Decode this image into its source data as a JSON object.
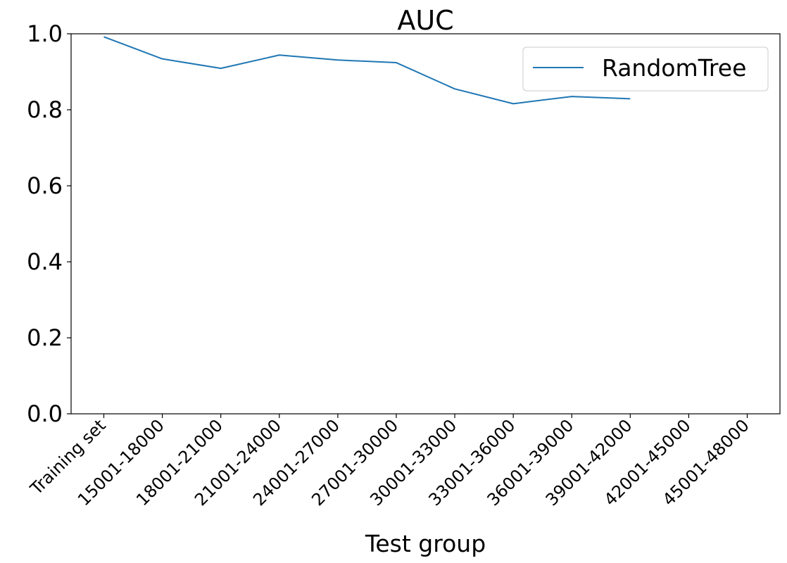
{
  "chart_data": {
    "type": "line",
    "title": "AUC",
    "xlabel": "Test group",
    "ylabel": "",
    "categories": [
      "Training set",
      "15001-18000",
      "18001-21000",
      "21001-24000",
      "24001-27000",
      "27001-30000",
      "30001-33000",
      "33001-36000",
      "36001-39000",
      "39001-42000",
      "42001-45000",
      "45001-48000"
    ],
    "series": [
      {
        "name": "RandomTree",
        "color": "#1f77b4",
        "values": [
          0.992,
          0.934,
          0.909,
          0.944,
          0.931,
          0.924,
          0.855,
          0.816,
          0.835,
          0.829,
          null,
          null
        ]
      }
    ],
    "ylim": [
      0.0,
      1.0
    ],
    "yticks": [
      0.0,
      0.2,
      0.4,
      0.6,
      0.8,
      1.0
    ],
    "ytick_labels": [
      "0.0",
      "0.2",
      "0.4",
      "0.6",
      "0.8",
      "1.0"
    ],
    "grid": false,
    "legend_position": "top-right"
  }
}
